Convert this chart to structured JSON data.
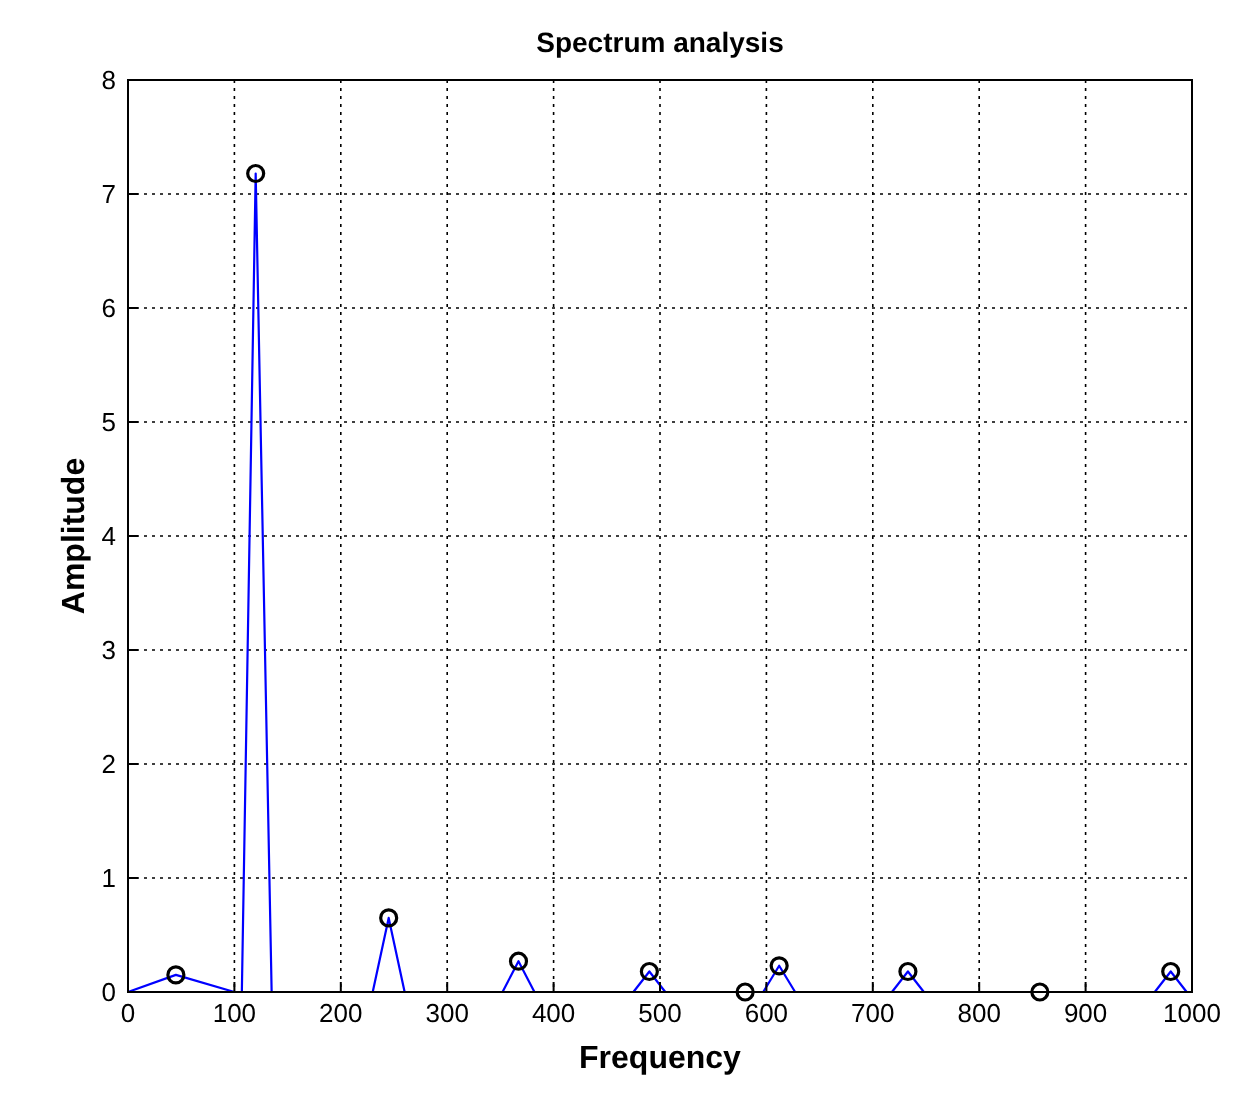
{
  "chart_data": {
    "type": "line",
    "title": "Spectrum analysis",
    "xlabel": "Frequency",
    "ylabel": "Amplitude",
    "xlim": [
      0,
      1000
    ],
    "xticks": [
      0,
      100,
      200,
      300,
      400,
      500,
      600,
      700,
      800,
      900,
      1000
    ],
    "ylim": [
      0,
      8
    ],
    "yticks": [
      0,
      1,
      2,
      3,
      4,
      5,
      6,
      7,
      8
    ],
    "grid": true,
    "series": [
      {
        "color": "#0000ff",
        "marker": "none",
        "x": [
          0,
          45,
          100,
          107,
          120,
          135,
          230,
          245,
          260,
          352,
          367,
          382,
          475,
          490,
          505,
          597,
          612,
          627,
          718,
          733,
          748,
          965,
          980,
          995,
          1000
        ],
        "values": [
          0,
          0.15,
          0,
          0,
          7.18,
          0,
          0,
          0.65,
          0,
          0,
          0.27,
          0,
          0,
          0.18,
          0,
          0,
          0.23,
          0,
          0,
          0.18,
          0,
          0,
          0.18,
          0,
          0
        ]
      },
      {
        "type": "scatter",
        "color": "#000000",
        "marker": "circle",
        "x": [
          45,
          120,
          245,
          367,
          490,
          580,
          612,
          733,
          857,
          980
        ],
        "values": [
          0.15,
          7.18,
          0.65,
          0.27,
          0.18,
          0,
          0.23,
          0.18,
          0,
          0.18
        ]
      }
    ]
  }
}
